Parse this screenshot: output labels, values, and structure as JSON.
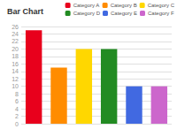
{
  "chart_data": {
    "type": "bar",
    "title": "Bar Chart",
    "categories": [
      "Category A",
      "Category B",
      "Category C",
      "Category D",
      "Category E",
      "Category F"
    ],
    "values": [
      25,
      15,
      20,
      20,
      10,
      10
    ],
    "colors": [
      "#e8001c",
      "#ff8c00",
      "#ffd700",
      "#228B22",
      "#4169e1",
      "#cc66cc"
    ],
    "ylim": [
      0,
      26
    ],
    "yticks": [
      0,
      2,
      4,
      6,
      8,
      10,
      12,
      14,
      16,
      18,
      20,
      22,
      24,
      26
    ],
    "grid": true,
    "legend": "upper right",
    "tick_labels": "y"
  }
}
